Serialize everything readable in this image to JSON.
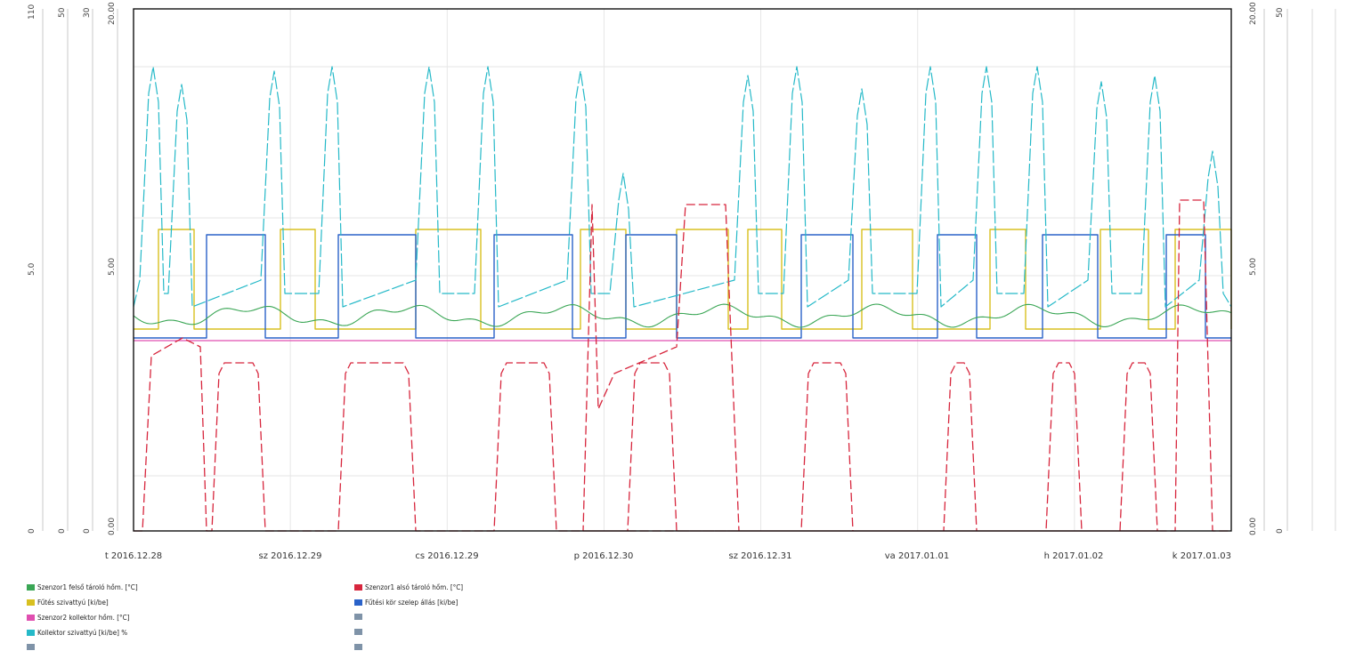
{
  "chart_data": {
    "type": "line",
    "title": "",
    "x_tick_labels": [
      "t 2016.12.28",
      "sz 2016.12.29",
      "cs 2016.12.29",
      "p 2016.12.30",
      "sz 2016.12.31",
      "va 2017.01.01",
      "h 2017.01.02",
      "k 2017.01.03"
    ],
    "left_axes": [
      {
        "top": "110",
        "mid": "5.0",
        "bottom": "0"
      },
      {
        "top": "50",
        "mid": "",
        "bottom": "0"
      },
      {
        "top": "30",
        "mid": "",
        "bottom": "0"
      },
      {
        "top": "20.00",
        "mid": "5.00",
        "bottom": "0.00"
      }
    ],
    "right_axes": [
      {
        "top": "20.00",
        "mid": "5.00",
        "bottom": "0.00"
      },
      {
        "top": "50",
        "mid": "",
        "bottom": "0"
      }
    ],
    "series": [
      {
        "name": "Szenzor1 felső tároló hőm. [°C]",
        "color": "#3aa655",
        "trace": "green"
      },
      {
        "name": "Szenzor1 alsó tároló hőm. [°C]",
        "color": "#d7263d",
        "trace": "red"
      },
      {
        "name": "Fűtés szivattyú [ki/be]",
        "color": "#d8c020",
        "trace": "yellow"
      },
      {
        "name": "Fűtési kör szelep állás [ki/be]",
        "color": "#2a62c9",
        "trace": "blue"
      },
      {
        "name": "Szenzor2 kollektor hőm. [°C]",
        "color": "#e04fb0",
        "trace": "magenta"
      },
      {
        "name": "Kollektor szivattyú [ki/be] %",
        "color": "#25b9c8",
        "trace": "cyan"
      }
    ],
    "extra_legend_slots": 4,
    "colors": {
      "plot_border": "#111111",
      "grid": "#e6e6e6",
      "empty_swatch": "#7f93a8"
    }
  }
}
